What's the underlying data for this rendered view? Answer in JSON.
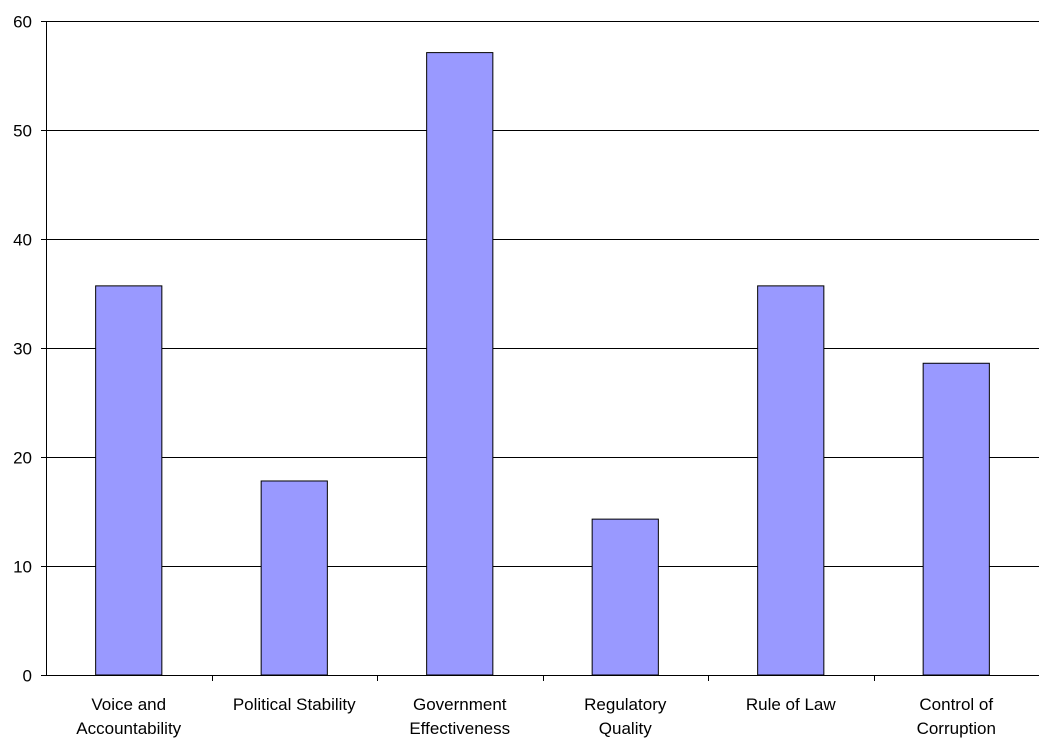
{
  "chart_data": {
    "type": "bar",
    "title": "",
    "xlabel": "",
    "ylabel": "",
    "categories": [
      [
        "Voice and",
        "Accountability"
      ],
      [
        "Political Stability"
      ],
      [
        "Government",
        "Effectiveness"
      ],
      [
        "Regulatory",
        "Quality"
      ],
      [
        "Rule of Law"
      ],
      [
        "Control of",
        "Corruption"
      ]
    ],
    "values": [
      35.7,
      17.8,
      57.1,
      14.3,
      35.7,
      28.6
    ],
    "ylim": [
      0,
      60
    ],
    "yticks": [
      0,
      10,
      20,
      30,
      40,
      50,
      60
    ],
    "grid": true,
    "legend": "none",
    "colors": {
      "bar_fill": "#9999ff",
      "bar_stroke": "#000000",
      "grid": "#000000",
      "axis": "#000000",
      "background": "#ffffff"
    }
  }
}
